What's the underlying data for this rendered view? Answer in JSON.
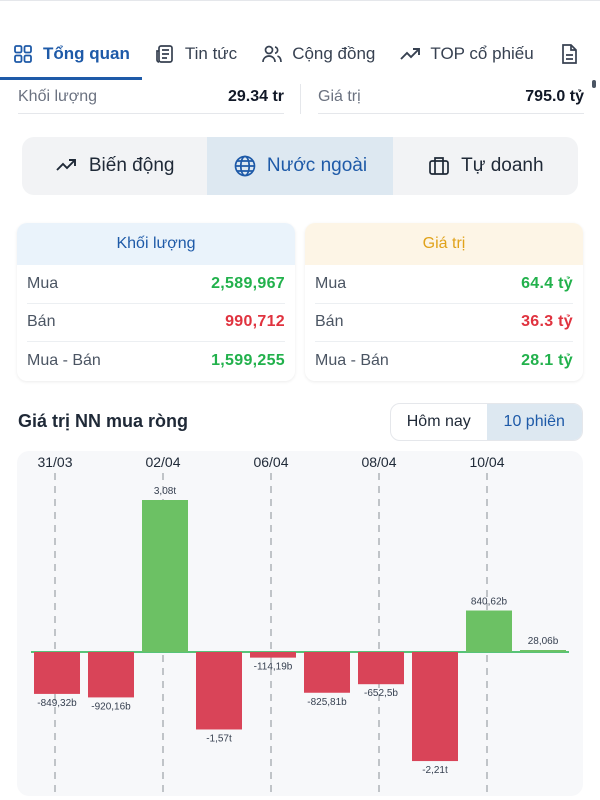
{
  "nav": {
    "tabs": [
      {
        "label": "Tổng quan",
        "icon": "grid-icon",
        "active": true
      },
      {
        "label": "Tin tức",
        "icon": "newspaper-icon",
        "active": false
      },
      {
        "label": "Cộng đồng",
        "icon": "users-icon",
        "active": false
      },
      {
        "label": "TOP cổ phiếu",
        "icon": "trending-up-icon",
        "active": false
      },
      {
        "label": "",
        "icon": "document-icon",
        "active": false
      }
    ]
  },
  "summary": {
    "volume_label": "Khối lượng",
    "volume_value": "29.34 tr",
    "value_label": "Giá trị",
    "value_value": "795.0 tỷ"
  },
  "segment": {
    "items": [
      {
        "label": "Biến động",
        "icon": "trending-up-icon",
        "active": false
      },
      {
        "label": "Nước ngoài",
        "icon": "globe-icon",
        "active": true
      },
      {
        "label": "Tự doanh",
        "icon": "briefcase-icon",
        "active": false
      }
    ]
  },
  "volume_card": {
    "title": "Khối lượng",
    "rows": [
      {
        "label": "Mua",
        "value": "2,589,967",
        "color": "green"
      },
      {
        "label": "Bán",
        "value": "990,712",
        "color": "red"
      },
      {
        "label": "Mua - Bán",
        "value": "1,599,255",
        "color": "green"
      }
    ]
  },
  "value_card": {
    "title": "Giá trị",
    "rows": [
      {
        "label": "Mua",
        "value": "64.4 tỷ",
        "color": "green"
      },
      {
        "label": "Bán",
        "value": "36.3 tỷ",
        "color": "red"
      },
      {
        "label": "Mua - Bán",
        "value": "28.1 tỷ",
        "color": "green"
      }
    ]
  },
  "net_section": {
    "title": "Giá trị NN mua ròng",
    "periods": [
      {
        "label": "Hôm nay",
        "active": false
      },
      {
        "label": "10 phiên",
        "active": true
      }
    ]
  },
  "colors": {
    "accent": "#1e5aa8",
    "positive": "#6cc164",
    "negative": "#d94458"
  },
  "chart_data": {
    "type": "bar",
    "x_tick_labels": [
      "31/03",
      "02/04",
      "06/04",
      "08/04",
      "10/04"
    ],
    "values": [
      -849.32,
      -920.16,
      3080,
      -1570,
      -114.19,
      -825.81,
      -652.5,
      -2210,
      840.62,
      28.06
    ],
    "data_labels": [
      "-849,32b",
      "-920,16b",
      "3,08t",
      "-1,57t",
      "-114,19b",
      "-825,81b",
      "-652,5b",
      "-2,21t",
      "840,62b",
      "28,06b"
    ],
    "unit_note": "b = tỷ? values in billions (b) and trillions (t)",
    "grid": "vertical dashed at labeled ticks"
  }
}
